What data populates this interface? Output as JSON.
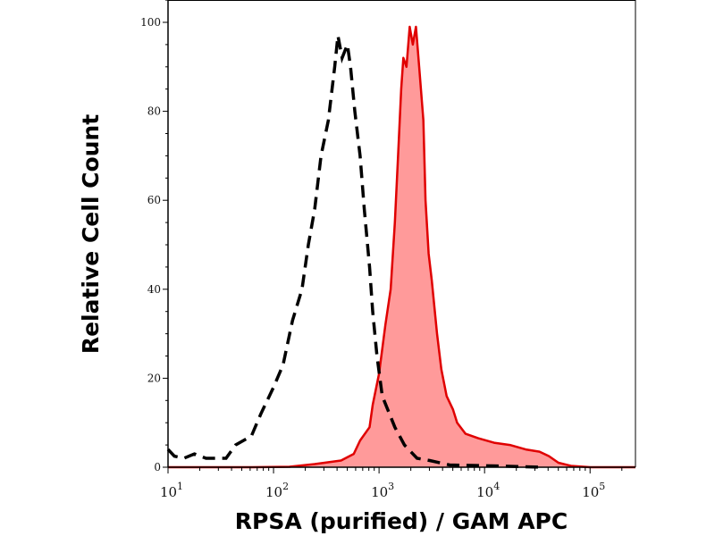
{
  "chart_data": {
    "type": "area",
    "title": "",
    "xlabel": "RPSA (purified) / GAM APC",
    "ylabel": "Relative Cell Count",
    "x_scale": "log10",
    "xlim_log10": [
      1.0,
      5.43
    ],
    "ylim": [
      0,
      105
    ],
    "yticks": [
      0,
      20,
      40,
      60,
      80,
      100
    ],
    "xticks": [
      {
        "base": "10",
        "exp": "1",
        "log": 1
      },
      {
        "base": "10",
        "exp": "2",
        "log": 2
      },
      {
        "base": "10",
        "exp": "3",
        "log": 3
      },
      {
        "base": "10",
        "exp": "4",
        "log": 4
      },
      {
        "base": "10",
        "exp": "5",
        "log": 5
      }
    ],
    "grid": false,
    "legend": "none",
    "series": [
      {
        "style": "filled",
        "color": "#e00000",
        "fill": "#ff9a9a",
        "x_log10": [
          1.0,
          1.8,
          2.15,
          2.39,
          2.64,
          2.76,
          2.82,
          2.91,
          2.94,
          3.0,
          3.06,
          3.11,
          3.15,
          3.18,
          3.21,
          3.23,
          3.26,
          3.29,
          3.32,
          3.35,
          3.38,
          3.42,
          3.44,
          3.47,
          3.5,
          3.55,
          3.59,
          3.64,
          3.7,
          3.74,
          3.82,
          3.94,
          4.09,
          4.24,
          4.39,
          4.52,
          4.61,
          4.7,
          4.82,
          5.0,
          5.43
        ],
        "y": [
          0,
          0,
          0.1,
          0.7,
          1.5,
          3,
          6,
          9,
          14,
          21,
          32,
          40,
          55,
          70,
          85,
          92,
          90,
          99,
          95,
          99,
          90,
          78,
          60,
          48,
          42,
          30,
          22,
          16,
          13,
          10,
          7.5,
          6.5,
          5.5,
          5,
          4,
          3.5,
          2.5,
          1,
          0.3,
          0,
          0
        ]
      },
      {
        "style": "dashed",
        "color": "#000000",
        "x_log10": [
          1.0,
          1.06,
          1.15,
          1.25,
          1.36,
          1.55,
          1.64,
          1.79,
          1.88,
          2.0,
          2.09,
          2.18,
          2.27,
          2.33,
          2.39,
          2.45,
          2.52,
          2.58,
          2.61,
          2.65,
          2.7,
          2.73,
          2.77,
          2.82,
          2.86,
          2.91,
          2.94,
          2.98,
          3.03,
          3.15,
          3.24,
          3.36,
          3.48,
          3.67,
          4.09,
          4.55
        ],
        "y": [
          4,
          2.5,
          2,
          3,
          2,
          2,
          5,
          7,
          12,
          18,
          23,
          33,
          40,
          50,
          58,
          70,
          78,
          90,
          97,
          92,
          95,
          90,
          80,
          70,
          58,
          45,
          35,
          25,
          16,
          9,
          5,
          2,
          1.5,
          0.5,
          0.3,
          0
        ]
      }
    ]
  }
}
